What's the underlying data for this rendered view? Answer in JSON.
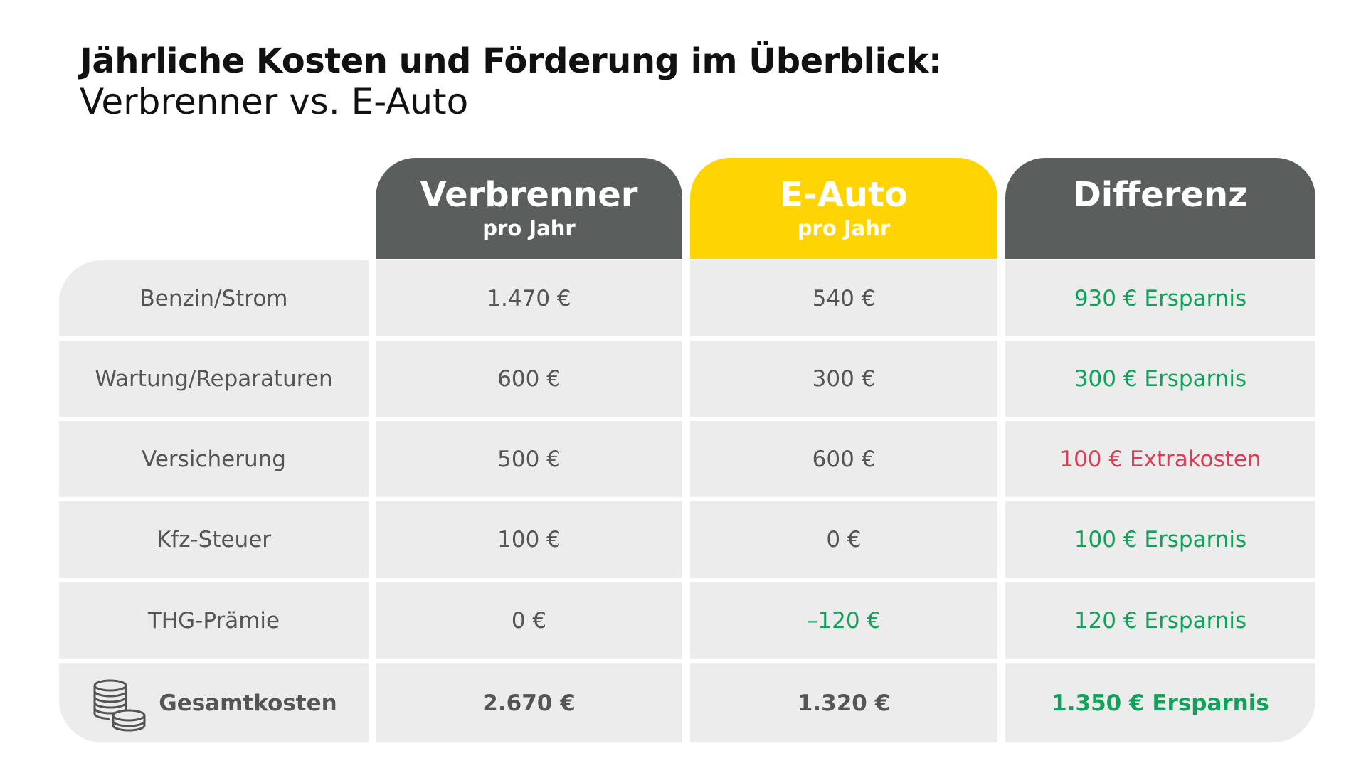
{
  "title": "Jährliche Kosten und Förderung im Überblick:",
  "subtitle": "Verbrenner vs. E-Auto",
  "columns": [
    {
      "main": "Verbrenner",
      "sub": "pro Jahr"
    },
    {
      "main": "E-Auto",
      "sub": "pro Jahr"
    },
    {
      "main": "Differenz",
      "sub": ""
    }
  ],
  "rows": [
    {
      "label": "Benzin/Strom",
      "verbrenner": "1.470 €",
      "eauto": "540 €",
      "diff": "930 € Ersparnis"
    },
    {
      "label": "Wartung/Reparaturen",
      "verbrenner": "600 €",
      "eauto": "300 €",
      "diff": "300 € Ersparnis"
    },
    {
      "label": "Versicherung",
      "verbrenner": "500 €",
      "eauto": "600 €",
      "diff": "100 € Extrakosten"
    },
    {
      "label": "Kfz-Steuer",
      "verbrenner": "100 €",
      "eauto": "0 €",
      "diff": "100 € Ersparnis"
    },
    {
      "label": "THG-Prämie",
      "verbrenner": "0 €",
      "eauto": "–120 €",
      "diff": "120 € Ersparnis"
    }
  ],
  "total": {
    "label": "Gesamtkosten",
    "verbrenner": "2.670 €",
    "eauto": "1.320 €",
    "diff": "1.350 € Ersparnis",
    "icon": "coins-icon"
  },
  "colors": {
    "header_dark": "#5a5e5d",
    "header_yellow": "#ffd400",
    "cell_bg": "#ececec",
    "saving_green": "#13a05a",
    "extra_red": "#e03a55"
  }
}
